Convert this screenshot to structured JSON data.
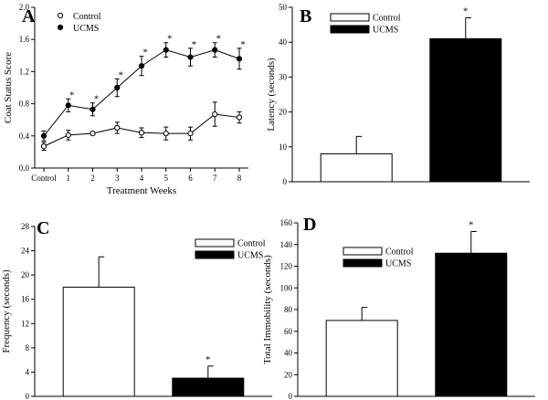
{
  "chart_data": [
    {
      "panel": "A",
      "type": "line",
      "xlabel": "Treatment Weeks",
      "ylabel": "Coat Status Score",
      "categories": [
        "Control",
        "1",
        "2",
        "3",
        "4",
        "5",
        "6",
        "7",
        "8"
      ],
      "ylim": [
        0,
        2.0
      ],
      "yticks": [
        "0.0",
        "0.4",
        "0.8",
        "1.2",
        "1.6",
        "2.0"
      ],
      "series": [
        {
          "name": "Control",
          "marker": "open-circle",
          "values": [
            0.27,
            0.41,
            0.43,
            0.5,
            0.44,
            0.43,
            0.43,
            0.67,
            0.63
          ],
          "errors": [
            0.05,
            0.06,
            0.02,
            0.07,
            0.06,
            0.08,
            0.08,
            0.15,
            0.07
          ]
        },
        {
          "name": "UCMS",
          "marker": "filled-circle",
          "values": [
            0.4,
            0.78,
            0.73,
            1.0,
            1.27,
            1.47,
            1.38,
            1.47,
            1.36
          ],
          "errors": [
            0.06,
            0.08,
            0.08,
            0.11,
            0.12,
            0.09,
            0.11,
            0.09,
            0.13
          ]
        }
      ],
      "significant": [
        "1",
        "2",
        "3",
        "4",
        "5",
        "6",
        "7",
        "8"
      ],
      "significance_mark": "*"
    },
    {
      "panel": "B",
      "type": "bar",
      "ylabel": "Latency (seconds)",
      "categories": [
        "Control",
        "UCMS"
      ],
      "values": [
        8,
        41
      ],
      "errors": [
        5,
        6
      ],
      "colors": [
        "#ffffff",
        "#000000"
      ],
      "ylim": [
        0,
        50
      ],
      "yticks": [
        "0",
        "10",
        "20",
        "30",
        "40",
        "50"
      ],
      "significant": [
        "UCMS"
      ],
      "significance_mark": "*"
    },
    {
      "panel": "C",
      "type": "bar",
      "ylabel": "Frequency (seconds)",
      "categories": [
        "Control",
        "UCMS"
      ],
      "values": [
        18,
        3
      ],
      "errors": [
        5,
        2
      ],
      "colors": [
        "#ffffff",
        "#000000"
      ],
      "ylim": [
        0,
        28
      ],
      "yticks": [
        "0",
        "4",
        "8",
        "12",
        "16",
        "20",
        "24",
        "28"
      ],
      "significant": [
        "UCMS"
      ],
      "significance_mark": "*"
    },
    {
      "panel": "D",
      "type": "bar",
      "ylabel": "Total Immobility (seconds)",
      "categories": [
        "Control",
        "UCMS"
      ],
      "values": [
        70,
        132
      ],
      "errors": [
        12,
        20
      ],
      "colors": [
        "#ffffff",
        "#000000"
      ],
      "ylim": [
        0,
        160
      ],
      "yticks": [
        "0",
        "20",
        "40",
        "60",
        "80",
        "100",
        "120",
        "140",
        "160"
      ],
      "significant": [
        "UCMS"
      ],
      "significance_mark": "*"
    }
  ]
}
